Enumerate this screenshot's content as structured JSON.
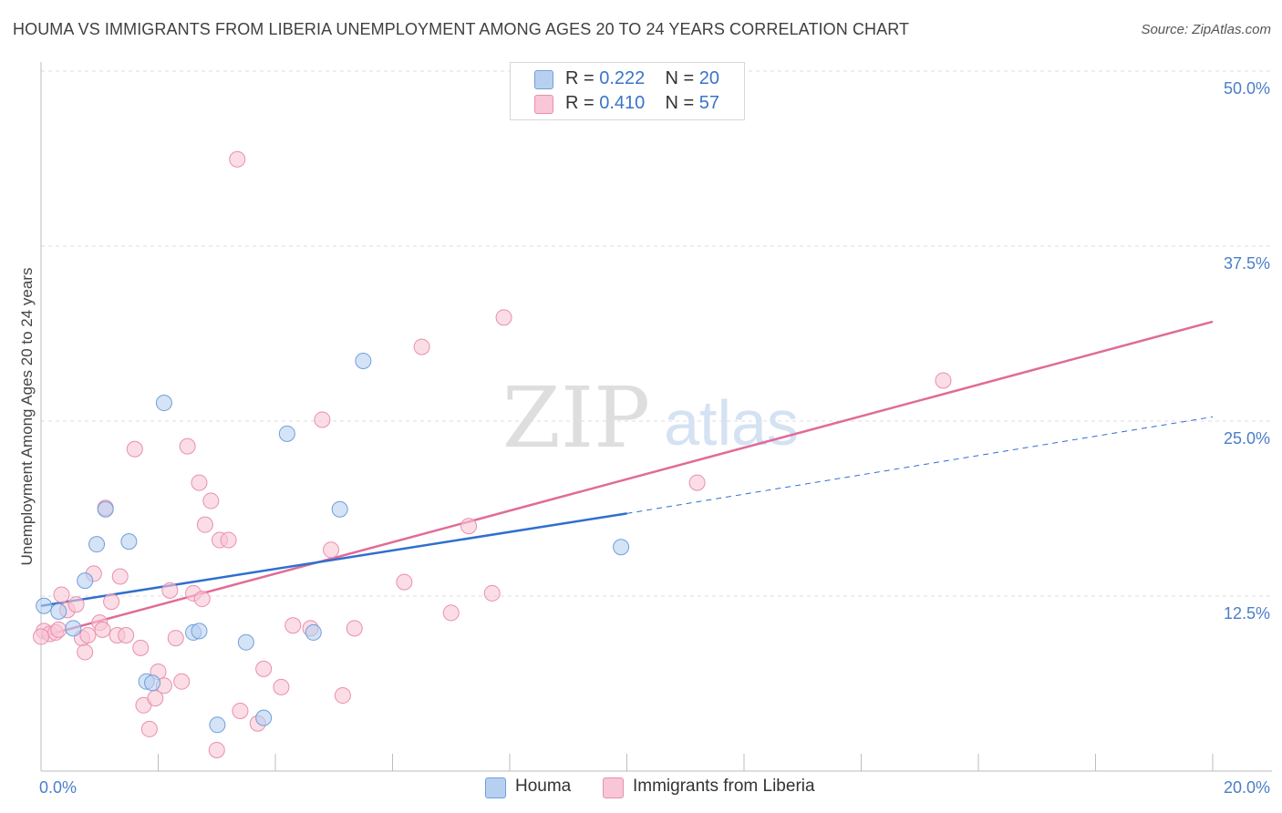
{
  "header": {
    "title": "HOUMA VS IMMIGRANTS FROM LIBERIA UNEMPLOYMENT AMONG AGES 20 TO 24 YEARS CORRELATION CHART",
    "source": "Source: ZipAtlas.com"
  },
  "watermark": {
    "zip": "ZIP",
    "atlas": "atlas"
  },
  "legend_top": {
    "rows": [
      {
        "r_label": "R =",
        "r_value": "0.222",
        "n_label": "N =",
        "n_value": "20"
      },
      {
        "r_label": "R =",
        "r_value": "0.410",
        "n_label": "N =",
        "n_value": "57"
      }
    ]
  },
  "legend_bottom": {
    "items": [
      {
        "label": "Houma"
      },
      {
        "label": "Immigrants from Liberia"
      }
    ]
  },
  "colors": {
    "houma_fill": "#b8d0f0",
    "houma_stroke": "#6f9fdc",
    "houma_line": "#2f6fce",
    "liberia_fill": "#f8c6d6",
    "liberia_stroke": "#e98fae",
    "liberia_line": "#e06b98",
    "grid": "#dcdcdc",
    "tick_label": "#4a7ec8"
  },
  "chart_data": {
    "type": "scatter",
    "title": "HOUMA VS IMMIGRANTS FROM LIBERIA UNEMPLOYMENT AMONG AGES 20 TO 24 YEARS CORRELATION CHART",
    "xlabel": "",
    "ylabel": "Unemployment Among Ages 20 to 24 years",
    "xlim": [
      0,
      20
    ],
    "ylim": [
      0,
      50
    ],
    "x_tick_labels": [
      {
        "value": 0,
        "label": "0.0%"
      },
      {
        "value": 20,
        "label": "20.0%"
      }
    ],
    "x_minor_ticks": [
      2,
      4,
      6,
      8,
      10,
      12,
      14,
      16,
      18,
      20
    ],
    "y_ticks": [
      {
        "value": 12.5,
        "label": "12.5%"
      },
      {
        "value": 25,
        "label": "25.0%"
      },
      {
        "value": 37.5,
        "label": "37.5%"
      },
      {
        "value": 50,
        "label": "50.0%"
      }
    ],
    "grid": true,
    "legend": "top-center",
    "series": [
      {
        "name": "Houma",
        "r": 0.222,
        "n": 20,
        "points": [
          [
            0.05,
            11.8
          ],
          [
            0.3,
            11.4
          ],
          [
            0.55,
            10.2
          ],
          [
            0.75,
            13.6
          ],
          [
            0.95,
            16.2
          ],
          [
            1.1,
            18.7
          ],
          [
            1.5,
            16.4
          ],
          [
            1.8,
            6.4
          ],
          [
            1.9,
            6.3
          ],
          [
            2.1,
            26.3
          ],
          [
            2.6,
            9.9
          ],
          [
            2.7,
            10.0
          ],
          [
            3.01,
            3.3
          ],
          [
            3.5,
            9.2
          ],
          [
            3.8,
            3.8
          ],
          [
            4.2,
            24.1
          ],
          [
            4.65,
            9.9
          ],
          [
            5.1,
            18.7
          ],
          [
            5.5,
            29.3
          ],
          [
            9.9,
            16.0
          ]
        ],
        "trend": {
          "x0": 0,
          "y0": 11.8,
          "x1": 10,
          "y1": 18.4,
          "dash_to_x": 20,
          "dash_to_y": 25.3
        }
      },
      {
        "name": "Immigrants from Liberia",
        "r": 0.41,
        "n": 57,
        "points": [
          [
            0.05,
            10.0
          ],
          [
            0.15,
            9.8
          ],
          [
            0.25,
            9.9
          ],
          [
            0.3,
            10.1
          ],
          [
            0.35,
            12.6
          ],
          [
            0.45,
            11.5
          ],
          [
            0.6,
            11.9
          ],
          [
            0.7,
            9.5
          ],
          [
            0.75,
            8.5
          ],
          [
            0.8,
            9.7
          ],
          [
            0.9,
            14.1
          ],
          [
            1.0,
            10.6
          ],
          [
            1.05,
            10.1
          ],
          [
            1.1,
            18.8
          ],
          [
            1.2,
            12.1
          ],
          [
            1.3,
            9.7
          ],
          [
            1.35,
            13.9
          ],
          [
            1.45,
            9.7
          ],
          [
            1.6,
            23.0
          ],
          [
            1.7,
            8.8
          ],
          [
            1.75,
            4.7
          ],
          [
            1.85,
            3.0
          ],
          [
            1.95,
            5.2
          ],
          [
            2.0,
            7.1
          ],
          [
            2.1,
            6.1
          ],
          [
            2.2,
            12.9
          ],
          [
            2.3,
            9.5
          ],
          [
            2.4,
            6.4
          ],
          [
            2.5,
            23.2
          ],
          [
            2.6,
            12.7
          ],
          [
            2.7,
            20.6
          ],
          [
            2.75,
            12.3
          ],
          [
            2.8,
            17.6
          ],
          [
            2.9,
            19.3
          ],
          [
            3.0,
            1.5
          ],
          [
            3.05,
            16.5
          ],
          [
            3.2,
            16.5
          ],
          [
            3.35,
            43.7
          ],
          [
            3.4,
            4.3
          ],
          [
            3.7,
            3.4
          ],
          [
            3.8,
            7.3
          ],
          [
            4.1,
            6.0
          ],
          [
            4.3,
            10.4
          ],
          [
            4.6,
            10.2
          ],
          [
            4.8,
            25.1
          ],
          [
            4.95,
            15.8
          ],
          [
            5.15,
            5.4
          ],
          [
            5.35,
            10.2
          ],
          [
            6.2,
            13.5
          ],
          [
            6.5,
            30.3
          ],
          [
            7.0,
            11.3
          ],
          [
            7.3,
            17.5
          ],
          [
            7.7,
            12.7
          ],
          [
            7.9,
            32.4
          ],
          [
            11.2,
            20.6
          ],
          [
            15.4,
            27.9
          ],
          [
            0.0,
            9.6
          ]
        ],
        "trend": {
          "x0": 0,
          "y0": 9.6,
          "x1": 20,
          "y1": 32.1
        }
      }
    ]
  }
}
